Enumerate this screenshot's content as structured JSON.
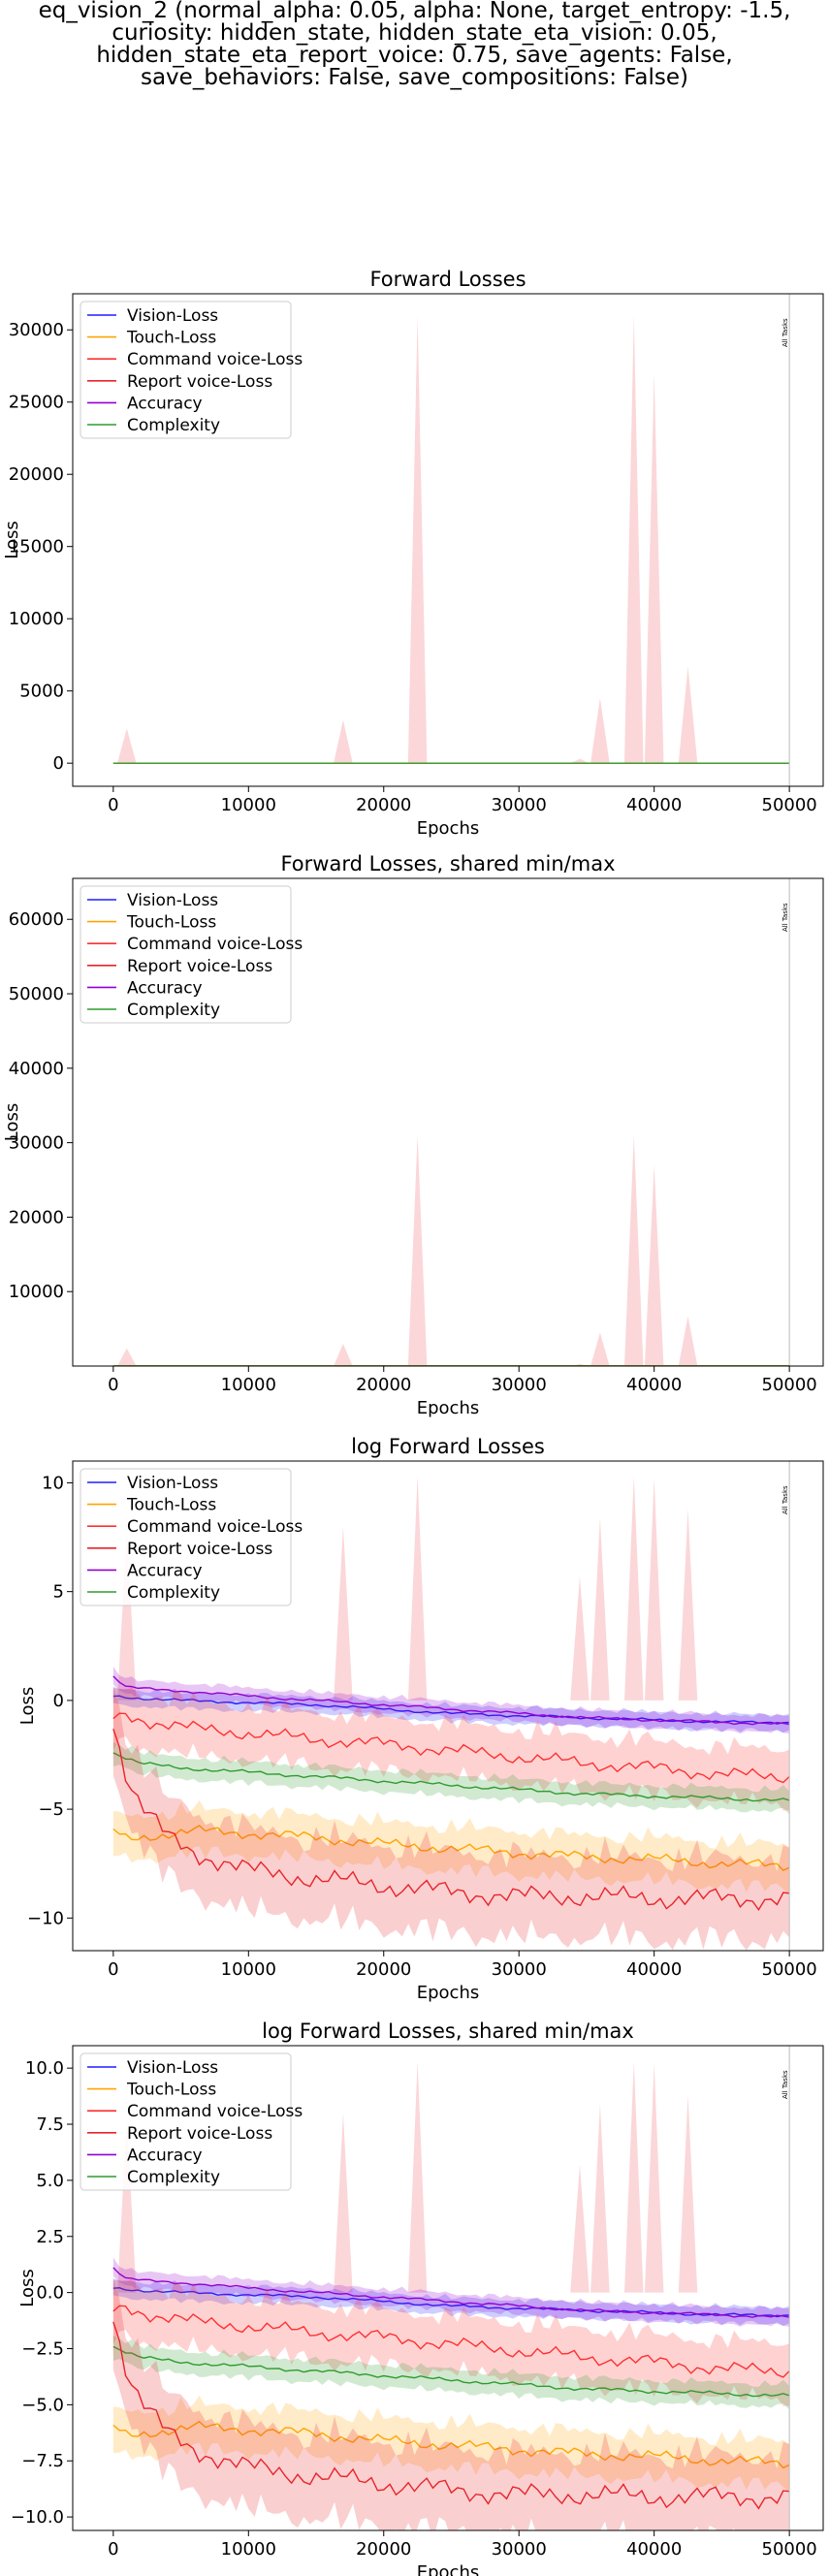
{
  "suptitle": [
    "eq_vision_2 (normal_alpha: 0.05, alpha: None, target_entropy: -1.5,",
    "curiosity: hidden_state, hidden_state_eta_vision: 0.05,",
    "hidden_state_eta_report_voice: 0.75, save_agents: False,",
    "save_behaviors: False, save_compositions: False)"
  ],
  "legend": [
    {
      "name": "Vision-Loss",
      "color": "#1f1fff"
    },
    {
      "name": "Touch-Loss",
      "color": "#ffa500"
    },
    {
      "name": "Command voice-Loss",
      "color": "#ff3030"
    },
    {
      "name": "Report voice-Loss",
      "color": "#e8242a"
    },
    {
      "name": "Accuracy",
      "color": "#9400d3"
    },
    {
      "name": "Complexity",
      "color": "#2e9b2e"
    }
  ],
  "vline": {
    "x": 50000,
    "label": "All Tasks"
  },
  "chart_data": [
    {
      "type": "line",
      "title": "Forward Losses",
      "xlabel": "Epochs",
      "ylabel": "Loss",
      "xlim": [
        -3000,
        52500
      ],
      "ylim": [
        -1600,
        32500
      ],
      "xticks": [
        0,
        10000,
        20000,
        30000,
        40000,
        50000
      ],
      "yticks": [
        0,
        5000,
        10000,
        15000,
        20000,
        25000,
        30000
      ],
      "legend_loc": "upper left",
      "log": false,
      "spikes": [
        {
          "x": 1000,
          "y": 2400
        },
        {
          "x": 17000,
          "y": 3000
        },
        {
          "x": 22500,
          "y": 31000
        },
        {
          "x": 34500,
          "y": 300
        },
        {
          "x": 36000,
          "y": 4500
        },
        {
          "x": 38500,
          "y": 31000
        },
        {
          "x": 40000,
          "y": 27000
        },
        {
          "x": 42500,
          "y": 6700
        }
      ]
    },
    {
      "type": "line",
      "title": "Forward Losses, shared min/max",
      "xlabel": "Epochs",
      "ylabel": "Loss",
      "xlim": [
        -3000,
        52500
      ],
      "ylim": [
        0,
        65500
      ],
      "xticks": [
        0,
        10000,
        20000,
        30000,
        40000,
        50000
      ],
      "yticks": [
        10000,
        20000,
        30000,
        40000,
        50000,
        60000
      ],
      "legend_loc": "upper left",
      "log": false,
      "spikes": [
        {
          "x": 1000,
          "y": 2400
        },
        {
          "x": 17000,
          "y": 3000
        },
        {
          "x": 22500,
          "y": 31000
        },
        {
          "x": 34500,
          "y": 300
        },
        {
          "x": 36000,
          "y": 4500
        },
        {
          "x": 38500,
          "y": 31000
        },
        {
          "x": 40000,
          "y": 27000
        },
        {
          "x": 42500,
          "y": 6700
        }
      ]
    },
    {
      "type": "line",
      "title": "log Forward Losses",
      "xlabel": "Epochs",
      "ylabel": "Loss",
      "xlim": [
        -3000,
        52500
      ],
      "ylim": [
        -11.5,
        11
      ],
      "xticks": [
        0,
        10000,
        20000,
        30000,
        40000,
        50000
      ],
      "yticks": [
        -10,
        -5,
        0,
        5,
        10
      ],
      "ytick_labels": [
        "−10",
        "−5",
        "0",
        "5",
        "10"
      ],
      "legend_loc": "upper left",
      "log": true,
      "spikes": [
        {
          "x": 1000,
          "y": 7.8
        },
        {
          "x": 17000,
          "y": 8.0
        },
        {
          "x": 22500,
          "y": 10.3
        },
        {
          "x": 34500,
          "y": 5.7
        },
        {
          "x": 36000,
          "y": 8.4
        },
        {
          "x": 38500,
          "y": 10.3
        },
        {
          "x": 40000,
          "y": 10.2
        },
        {
          "x": 42500,
          "y": 8.8
        }
      ]
    },
    {
      "type": "line",
      "title": "log Forward Losses, shared min/max",
      "xlabel": "Epochs",
      "ylabel": "Loss",
      "xlim": [
        -3000,
        52500
      ],
      "ylim": [
        -10.6,
        11
      ],
      "xticks": [
        0,
        10000,
        20000,
        30000,
        40000,
        50000
      ],
      "yticks": [
        -10,
        -7.5,
        -5,
        -2.5,
        0,
        2.5,
        5,
        7.5,
        10
      ],
      "ytick_labels": [
        "−10.0",
        "−7.5",
        "−5.0",
        "−2.5",
        "0.0",
        "2.5",
        "5.0",
        "7.5",
        "10.0"
      ],
      "legend_loc": "upper left",
      "log": true,
      "spikes": [
        {
          "x": 1000,
          "y": 7.8
        },
        {
          "x": 17000,
          "y": 8.0
        },
        {
          "x": 22500,
          "y": 10.3
        },
        {
          "x": 34500,
          "y": 5.7
        },
        {
          "x": 36000,
          "y": 8.4
        },
        {
          "x": 38500,
          "y": 10.3
        },
        {
          "x": 40000,
          "y": 10.2
        },
        {
          "x": 42500,
          "y": 8.8
        }
      ]
    }
  ],
  "log_series": [
    {
      "name": "Vision-Loss",
      "x": [
        0,
        2000,
        5000,
        10000,
        15000,
        20000,
        25000,
        30000,
        35000,
        40000,
        45000,
        50000
      ],
      "y": [
        0.2,
        0.1,
        0.0,
        -0.1,
        -0.2,
        -0.4,
        -0.6,
        -0.7,
        -0.8,
        -0.9,
        -1.0,
        -1.0
      ],
      "band": 0.3
    },
    {
      "name": "Accuracy",
      "x": [
        0,
        1000,
        3000,
        6000,
        10000,
        15000,
        20000,
        25000,
        30000,
        35000,
        40000,
        45000,
        50000
      ],
      "y": [
        1.1,
        0.6,
        0.5,
        0.4,
        0.2,
        0.0,
        -0.2,
        -0.4,
        -0.6,
        -0.8,
        -0.9,
        -1.0,
        -1.1
      ],
      "band": 0.3
    },
    {
      "name": "Command voice-Loss",
      "x": [
        0,
        1000,
        3000,
        6000,
        10000,
        15000,
        20000,
        25000,
        30000,
        35000,
        40000,
        45000,
        50000
      ],
      "y": [
        -0.8,
        -0.7,
        -1.0,
        -1.3,
        -1.5,
        -1.8,
        -2.0,
        -2.3,
        -2.6,
        -2.9,
        -3.1,
        -3.4,
        -3.5
      ],
      "band": 1.0
    },
    {
      "name": "Complexity",
      "x": [
        0,
        2000,
        5000,
        10000,
        15000,
        20000,
        25000,
        30000,
        35000,
        40000,
        45000,
        50000
      ],
      "y": [
        -2.4,
        -2.9,
        -3.1,
        -3.3,
        -3.5,
        -3.7,
        -3.9,
        -4.1,
        -4.3,
        -4.4,
        -4.5,
        -4.6
      ],
      "band": 0.4
    },
    {
      "name": "Touch-Loss",
      "x": [
        0,
        1000,
        3000,
        6000,
        10000,
        15000,
        20000,
        25000,
        30000,
        35000,
        40000,
        45000,
        50000
      ],
      "y": [
        -6.0,
        -6.4,
        -6.2,
        -6.0,
        -6.1,
        -6.3,
        -6.6,
        -6.8,
        -7.0,
        -7.2,
        -7.3,
        -7.5,
        -7.6
      ],
      "band": 0.8
    },
    {
      "name": "Report voice-Loss",
      "x": [
        0,
        1000,
        2000,
        4000,
        6000,
        10000,
        15000,
        20000,
        25000,
        30000,
        35000,
        40000,
        45000,
        50000
      ],
      "y": [
        -1.0,
        -3.5,
        -4.8,
        -6.3,
        -7.0,
        -7.8,
        -8.2,
        -8.5,
        -8.8,
        -9.0,
        -9.0,
        -9.1,
        -9.1,
        -9.1
      ],
      "band": 1.5
    }
  ]
}
